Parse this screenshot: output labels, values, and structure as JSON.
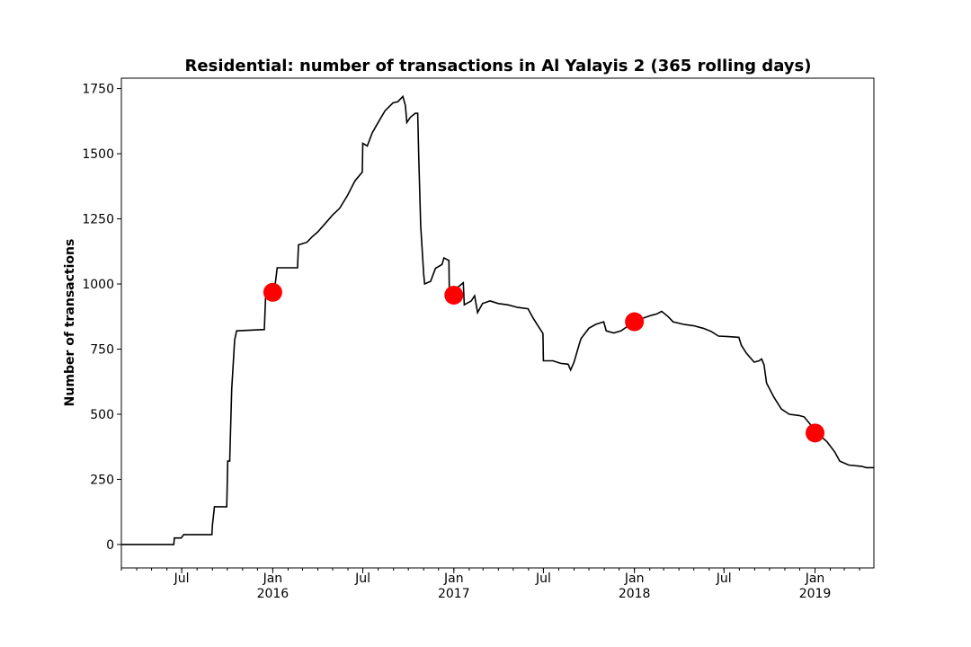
{
  "chart_data": {
    "type": "line",
    "title": "Residential: number of transactions in Al Yalayis 2 (365 rolling days)",
    "xlabel": "",
    "ylabel": "Number of transactions",
    "ylim": [
      -90,
      1790
    ],
    "xlim": [
      "2015-03-01",
      "2019-04-30"
    ],
    "yticks": [
      0,
      250,
      500,
      750,
      1000,
      1250,
      1500,
      1750
    ],
    "xticks": [
      {
        "date": "2015-07-01",
        "label": "Jul",
        "sublabel": ""
      },
      {
        "date": "2016-01-01",
        "label": "Jan",
        "sublabel": "2016"
      },
      {
        "date": "2016-07-01",
        "label": "Jul",
        "sublabel": ""
      },
      {
        "date": "2017-01-01",
        "label": "Jan",
        "sublabel": "2017"
      },
      {
        "date": "2017-07-01",
        "label": "Jul",
        "sublabel": ""
      },
      {
        "date": "2018-01-01",
        "label": "Jan",
        "sublabel": "2018"
      },
      {
        "date": "2018-07-01",
        "label": "Jul",
        "sublabel": ""
      },
      {
        "date": "2019-01-01",
        "label": "Jan",
        "sublabel": "2019"
      }
    ],
    "series": [
      {
        "name": "transactions",
        "color": "#000000",
        "points": [
          [
            "2015-03-01",
            0
          ],
          [
            "2015-06-15",
            0
          ],
          [
            "2015-06-16",
            25
          ],
          [
            "2015-06-30",
            25
          ],
          [
            "2015-07-05",
            38
          ],
          [
            "2015-08-31",
            38
          ],
          [
            "2015-09-01",
            75
          ],
          [
            "2015-09-05",
            145
          ],
          [
            "2015-09-30",
            145
          ],
          [
            "2015-10-02",
            320
          ],
          [
            "2015-10-06",
            320
          ],
          [
            "2015-10-10",
            595
          ],
          [
            "2015-10-16",
            785
          ],
          [
            "2015-10-20",
            820
          ],
          [
            "2015-12-15",
            825
          ],
          [
            "2015-12-18",
            975
          ],
          [
            "2016-01-05",
            985
          ],
          [
            "2016-01-10",
            1062
          ],
          [
            "2016-02-20",
            1062
          ],
          [
            "2016-02-22",
            1150
          ],
          [
            "2016-03-10",
            1160
          ],
          [
            "2016-03-20",
            1180
          ],
          [
            "2016-04-01",
            1200
          ],
          [
            "2016-04-15",
            1230
          ],
          [
            "2016-05-01",
            1265
          ],
          [
            "2016-05-15",
            1290
          ],
          [
            "2016-05-31",
            1340
          ],
          [
            "2016-06-15",
            1395
          ],
          [
            "2016-06-30",
            1430
          ],
          [
            "2016-07-01",
            1540
          ],
          [
            "2016-07-10",
            1530
          ],
          [
            "2016-07-20",
            1580
          ],
          [
            "2016-08-01",
            1620
          ],
          [
            "2016-08-15",
            1665
          ],
          [
            "2016-08-31",
            1695
          ],
          [
            "2016-09-10",
            1700
          ],
          [
            "2016-09-20",
            1720
          ],
          [
            "2016-09-25",
            1685
          ],
          [
            "2016-09-28",
            1620
          ],
          [
            "2016-10-05",
            1640
          ],
          [
            "2016-10-15",
            1655
          ],
          [
            "2016-10-20",
            1655
          ],
          [
            "2016-10-22",
            1495
          ],
          [
            "2016-10-26",
            1225
          ],
          [
            "2016-11-01",
            1040
          ],
          [
            "2016-11-03",
            1000
          ],
          [
            "2016-11-15",
            1010
          ],
          [
            "2016-11-25",
            1060
          ],
          [
            "2016-12-08",
            1075
          ],
          [
            "2016-12-12",
            1100
          ],
          [
            "2016-12-22",
            1090
          ],
          [
            "2016-12-23",
            960
          ],
          [
            "2017-01-20",
            1005
          ],
          [
            "2017-01-22",
            920
          ],
          [
            "2017-02-05",
            935
          ],
          [
            "2017-02-12",
            955
          ],
          [
            "2017-02-18",
            890
          ],
          [
            "2017-02-28",
            925
          ],
          [
            "2017-03-15",
            935
          ],
          [
            "2017-04-01",
            925
          ],
          [
            "2017-04-20",
            920
          ],
          [
            "2017-05-10",
            910
          ],
          [
            "2017-05-31",
            905
          ],
          [
            "2017-06-10",
            870
          ],
          [
            "2017-06-20",
            840
          ],
          [
            "2017-06-30",
            810
          ],
          [
            "2017-07-01",
            705
          ],
          [
            "2017-07-20",
            705
          ],
          [
            "2017-08-05",
            695
          ],
          [
            "2017-08-20",
            692
          ],
          [
            "2017-08-25",
            670
          ],
          [
            "2017-09-01",
            700
          ],
          [
            "2017-09-10",
            760
          ],
          [
            "2017-09-15",
            790
          ],
          [
            "2017-10-01",
            830
          ],
          [
            "2017-10-15",
            845
          ],
          [
            "2017-10-31",
            855
          ],
          [
            "2017-11-05",
            820
          ],
          [
            "2017-11-20",
            812
          ],
          [
            "2017-12-05",
            820
          ],
          [
            "2017-12-20",
            840
          ],
          [
            "2018-01-01",
            855
          ],
          [
            "2018-01-20",
            870
          ],
          [
            "2018-02-05",
            880
          ],
          [
            "2018-02-15",
            885
          ],
          [
            "2018-02-25",
            895
          ],
          [
            "2018-03-10",
            875
          ],
          [
            "2018-03-20",
            855
          ],
          [
            "2018-04-10",
            845
          ],
          [
            "2018-04-30",
            840
          ],
          [
            "2018-05-20",
            830
          ],
          [
            "2018-06-05",
            818
          ],
          [
            "2018-06-20",
            800
          ],
          [
            "2018-07-10",
            798
          ],
          [
            "2018-07-31",
            795
          ],
          [
            "2018-08-05",
            765
          ],
          [
            "2018-08-15",
            735
          ],
          [
            "2018-08-31",
            700
          ],
          [
            "2018-09-10",
            705
          ],
          [
            "2018-09-15",
            712
          ],
          [
            "2018-09-20",
            690
          ],
          [
            "2018-09-25",
            620
          ],
          [
            "2018-10-10",
            565
          ],
          [
            "2018-10-25",
            520
          ],
          [
            "2018-11-10",
            500
          ],
          [
            "2018-11-30",
            495
          ],
          [
            "2018-12-10",
            490
          ],
          [
            "2018-12-25",
            455
          ],
          [
            "2019-01-05",
            428
          ],
          [
            "2019-01-25",
            395
          ],
          [
            "2019-02-10",
            355
          ],
          [
            "2019-02-20",
            320
          ],
          [
            "2019-03-10",
            305
          ],
          [
            "2019-04-05",
            300
          ],
          [
            "2019-04-15",
            295
          ],
          [
            "2019-04-30",
            295
          ]
        ]
      }
    ],
    "markers": [
      {
        "date": "2016-01-01",
        "value": 968,
        "color": "#ff0000"
      },
      {
        "date": "2017-01-01",
        "value": 957,
        "color": "#ff0000"
      },
      {
        "date": "2018-01-01",
        "value": 855,
        "color": "#ff0000"
      },
      {
        "date": "2019-01-01",
        "value": 428,
        "color": "#ff0000"
      }
    ]
  }
}
